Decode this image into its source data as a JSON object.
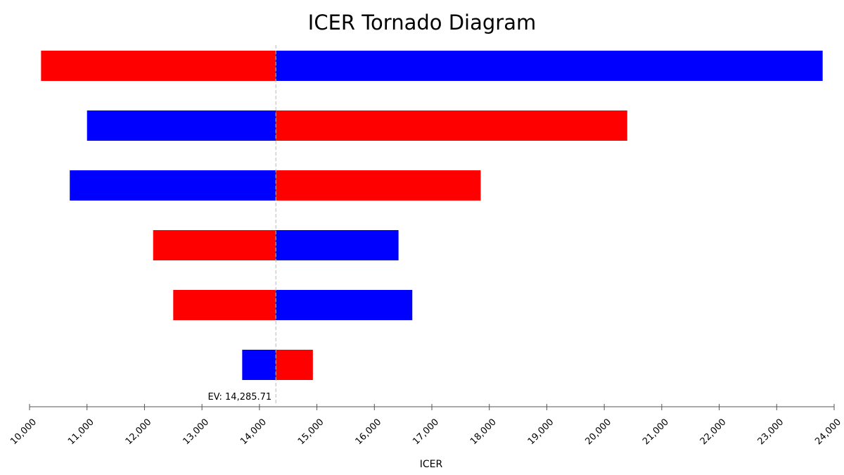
{
  "chart_data": {
    "type": "bar",
    "orientation": "horizontal-tornado",
    "title": "ICER Tornado Diagram",
    "xlabel": "ICER",
    "ylabel": "",
    "xlim": [
      10000,
      24000
    ],
    "ticks": [
      10000,
      11000,
      12000,
      13000,
      14000,
      15000,
      16000,
      17000,
      18000,
      19000,
      20000,
      21000,
      22000,
      23000,
      24000
    ],
    "tick_labels": [
      "10,000",
      "11,000",
      "12,000",
      "13,000",
      "14,000",
      "15,000",
      "16,000",
      "17,000",
      "18,000",
      "19,000",
      "20,000",
      "21,000",
      "22,000",
      "23,000",
      "24,000"
    ],
    "expected_value": 14285.71,
    "ev_label": "EV: 14,285.71",
    "legend": "none",
    "grid": false,
    "colors": {
      "red": "#ff0000",
      "blue": "#0000ff"
    },
    "bars": [
      {
        "low": 10200,
        "high": 23800,
        "low_color": "red",
        "high_color": "blue"
      },
      {
        "low": 11000,
        "high": 20400,
        "low_color": "blue",
        "high_color": "red"
      },
      {
        "low": 10700,
        "high": 17850,
        "low_color": "blue",
        "high_color": "red"
      },
      {
        "low": 12150,
        "high": 16420,
        "low_color": "red",
        "high_color": "blue"
      },
      {
        "low": 12500,
        "high": 16660,
        "low_color": "red",
        "high_color": "blue"
      },
      {
        "low": 13700,
        "high": 14930,
        "low_color": "blue",
        "high_color": "red"
      }
    ]
  }
}
